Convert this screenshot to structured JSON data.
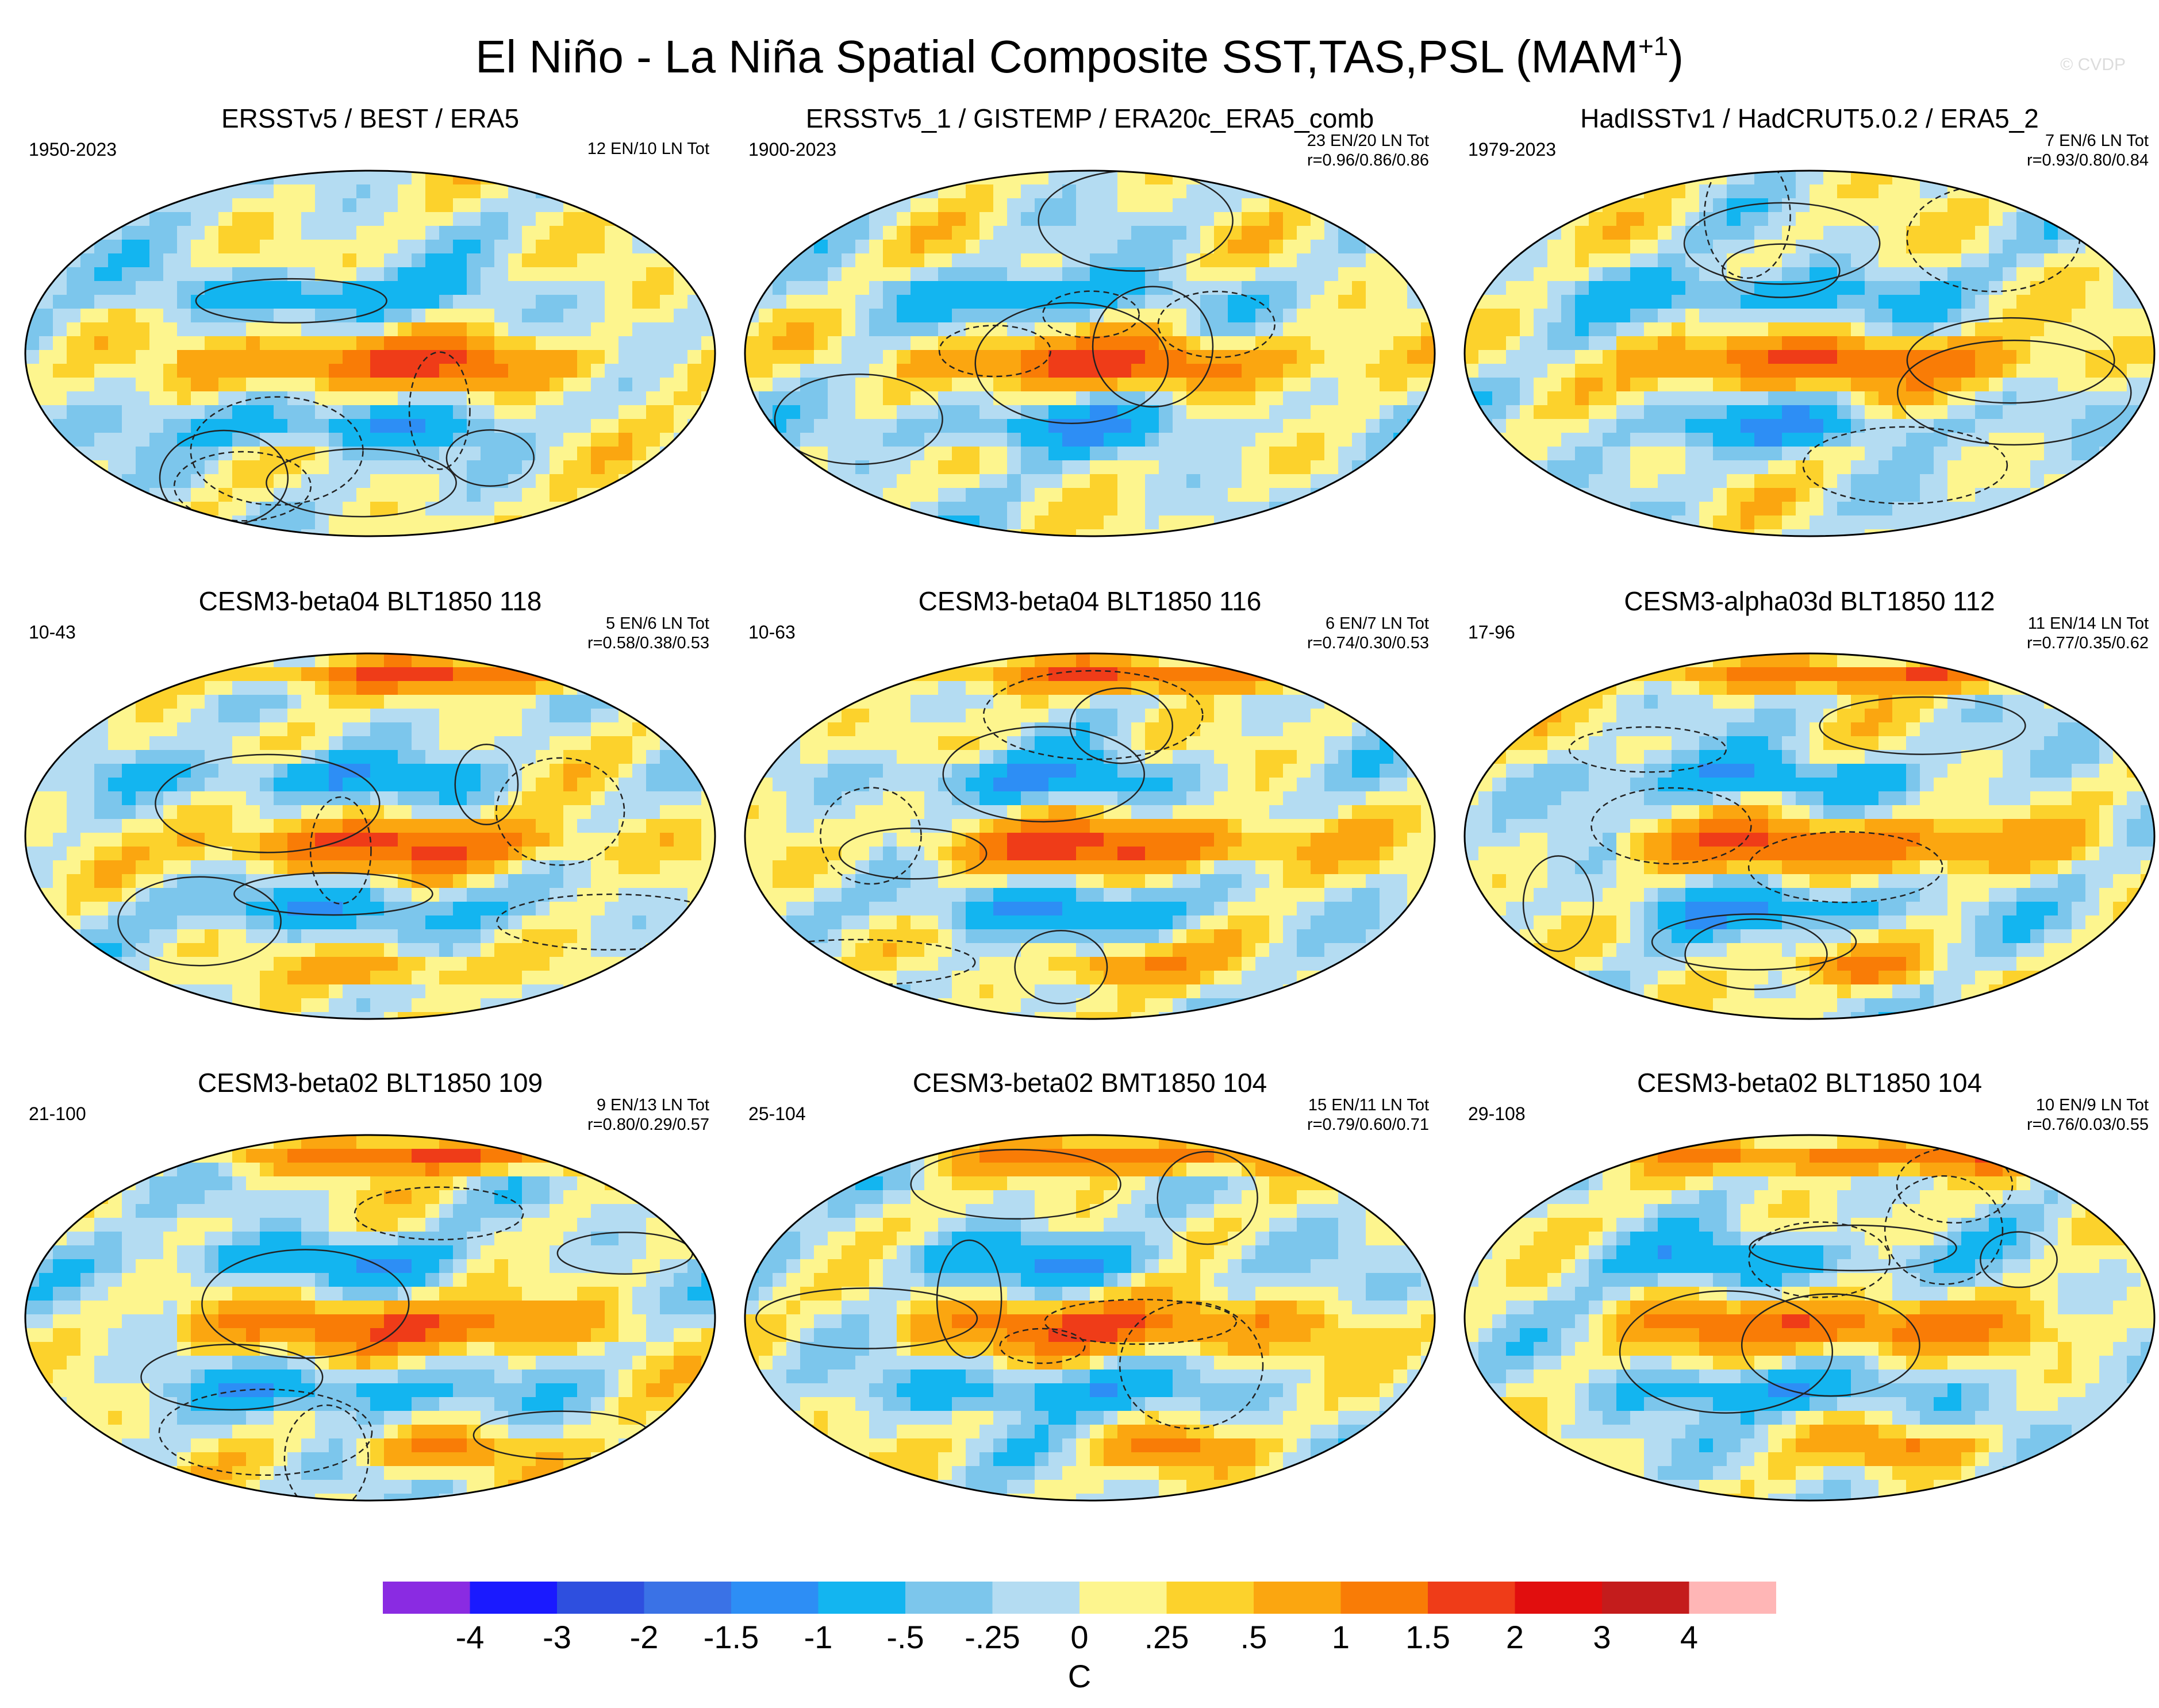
{
  "title": {
    "main": "El Niño - La Niña Spatial Composite SST,TAS,PSL (MAM",
    "superscript": "+1",
    "close": ")"
  },
  "watermark": "© CVDP",
  "panels": [
    {
      "title": "ERSSTv5 / BEST / ERA5",
      "years": "1950-2023",
      "count": "12 EN/10 LN Tot",
      "stats": ""
    },
    {
      "title": "ERSSTv5_1 / GISTEMP / ERA20c_ERA5_comb",
      "years": "1900-2023",
      "count": "23 EN/20 LN Tot",
      "stats": "r=0.96/0.86/0.86"
    },
    {
      "title": "HadISSTv1 / HadCRUT5.0.2 / ERA5_2",
      "years": "1979-2023",
      "count": "7 EN/6 LN Tot",
      "stats": "r=0.93/0.80/0.84"
    },
    {
      "title": "CESM3-beta04 BLT1850 118",
      "years": "10-43",
      "count": "5 EN/6 LN Tot",
      "stats": "r=0.58/0.38/0.53"
    },
    {
      "title": "CESM3-beta04 BLT1850 116",
      "years": "10-63",
      "count": "6 EN/7 LN Tot",
      "stats": "r=0.74/0.30/0.53"
    },
    {
      "title": "CESM3-alpha03d BLT1850 112",
      "years": "17-96",
      "count": "11 EN/14 LN Tot",
      "stats": "r=0.77/0.35/0.62"
    },
    {
      "title": "CESM3-beta02 BLT1850 109",
      "years": "21-100",
      "count": "9 EN/13 LN Tot",
      "stats": "r=0.80/0.29/0.57"
    },
    {
      "title": "CESM3-beta02 BMT1850 104",
      "years": "25-104",
      "count": "15 EN/11 LN Tot",
      "stats": "r=0.79/0.60/0.71"
    },
    {
      "title": "CESM3-beta02 BLT1850 104",
      "years": "29-108",
      "count": "10 EN/9 LN Tot",
      "stats": "r=0.76/0.03/0.55"
    }
  ],
  "chart_data": {
    "type": "heatmap",
    "description_type": "filled contour maps with PSL contour overlay",
    "colorbar": {
      "units": "C",
      "ticks": [
        "-4",
        "-3",
        "-2",
        "-1.5",
        "-1",
        "-.5",
        "-.25",
        "0",
        ".25",
        ".5",
        "1",
        "1.5",
        "2",
        "3",
        "4"
      ],
      "colors": [
        "#8a2be2",
        "#1a1aff",
        "#2e4fdf",
        "#3a72e6",
        "#2d8ef5",
        "#13b5f0",
        "#7cc6ec",
        "#b4dcf2",
        "#fdf58e",
        "#fcd22c",
        "#fba610",
        "#f97c06",
        "#ef3c18",
        "#e10e0e",
        "#c41c1c",
        "#ffb6b6"
      ]
    }
  }
}
